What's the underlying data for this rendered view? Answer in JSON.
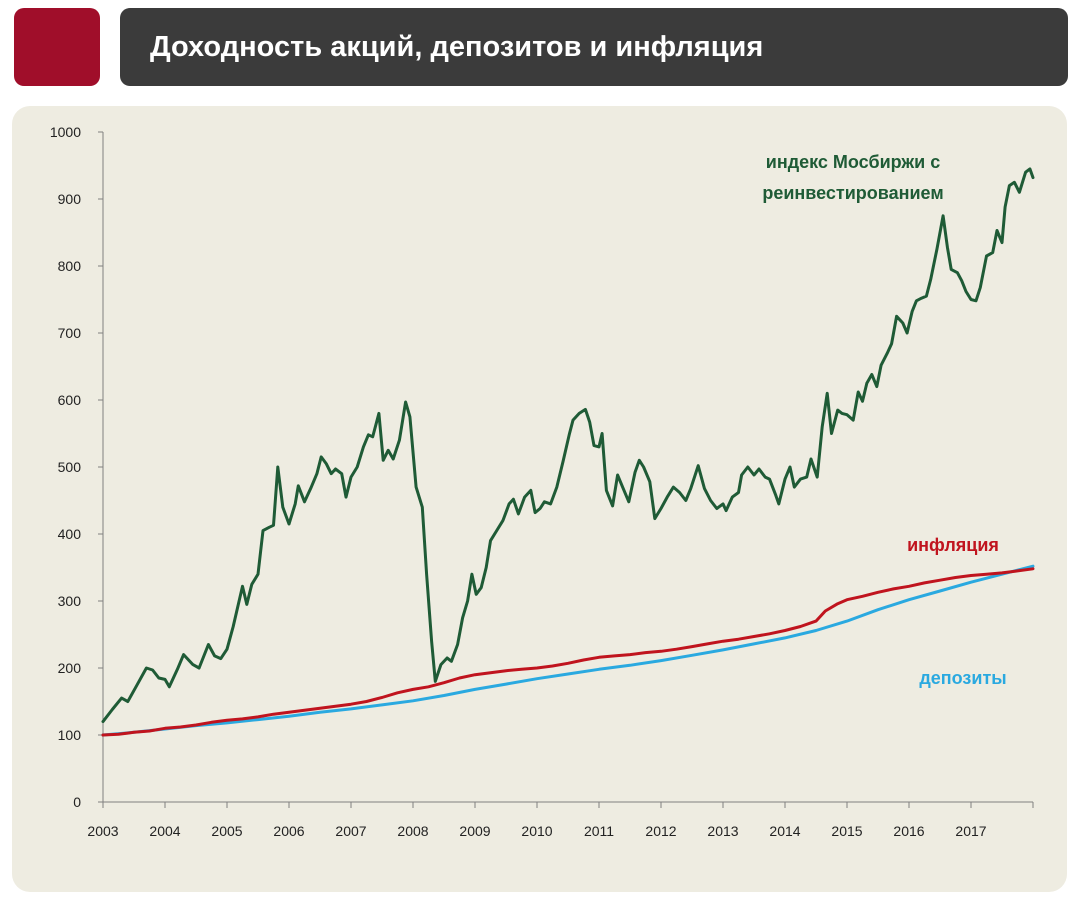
{
  "header": {
    "title": "Доходность акций, депозитов и инфляция"
  },
  "colors": {
    "accent": "#a00e2a",
    "title_bar": "#3b3b3b",
    "panel": "#eeece1",
    "stocks": "#1f5b36",
    "inflation": "#c0141e",
    "deposits": "#2aa9e0",
    "axis": "#808080"
  },
  "chart_data": {
    "type": "line",
    "title": "Доходность акций, депозитов и инфляция",
    "xlabel": "",
    "ylabel": "",
    "xlim": [
      2003,
      2018
    ],
    "ylim": [
      0,
      1000
    ],
    "x_ticks": [
      "2003",
      "2004",
      "2005",
      "2006",
      "2007",
      "2008",
      "2009",
      "2010",
      "2011",
      "2012",
      "2013",
      "2014",
      "2015",
      "2016",
      "2017"
    ],
    "y_ticks": [
      "0",
      "100",
      "200",
      "300",
      "400",
      "500",
      "600",
      "700",
      "800",
      "900",
      "1000"
    ],
    "grid": false,
    "series": [
      {
        "name": "индекс Мосбиржи с реинвестированием",
        "label_lines": [
          "индекс Мосбиржи с",
          "реинвестированием"
        ],
        "points": [
          [
            2003.0,
            120
          ],
          [
            2003.15,
            138
          ],
          [
            2003.3,
            155
          ],
          [
            2003.4,
            150
          ],
          [
            2003.55,
            175
          ],
          [
            2003.7,
            200
          ],
          [
            2003.8,
            197
          ],
          [
            2003.9,
            185
          ],
          [
            2004.0,
            183
          ],
          [
            2004.07,
            172
          ],
          [
            2004.2,
            198
          ],
          [
            2004.3,
            220
          ],
          [
            2004.45,
            205
          ],
          [
            2004.55,
            200
          ],
          [
            2004.7,
            235
          ],
          [
            2004.8,
            218
          ],
          [
            2004.9,
            214
          ],
          [
            2005.0,
            228
          ],
          [
            2005.1,
            262
          ],
          [
            2005.25,
            322
          ],
          [
            2005.32,
            295
          ],
          [
            2005.4,
            325
          ],
          [
            2005.5,
            340
          ],
          [
            2005.58,
            405
          ],
          [
            2005.68,
            410
          ],
          [
            2005.75,
            413
          ],
          [
            2005.82,
            500
          ],
          [
            2005.9,
            440
          ],
          [
            2006.0,
            415
          ],
          [
            2006.1,
            445
          ],
          [
            2006.15,
            472
          ],
          [
            2006.25,
            448
          ],
          [
            2006.35,
            468
          ],
          [
            2006.45,
            490
          ],
          [
            2006.52,
            515
          ],
          [
            2006.6,
            505
          ],
          [
            2006.68,
            490
          ],
          [
            2006.75,
            497
          ],
          [
            2006.85,
            490
          ],
          [
            2006.92,
            455
          ],
          [
            2007.0,
            485
          ],
          [
            2007.1,
            500
          ],
          [
            2007.2,
            530
          ],
          [
            2007.28,
            548
          ],
          [
            2007.35,
            545
          ],
          [
            2007.45,
            580
          ],
          [
            2007.52,
            510
          ],
          [
            2007.6,
            525
          ],
          [
            2007.68,
            512
          ],
          [
            2007.78,
            540
          ],
          [
            2007.88,
            597
          ],
          [
            2007.95,
            575
          ],
          [
            2008.05,
            470
          ],
          [
            2008.15,
            440
          ],
          [
            2008.22,
            340
          ],
          [
            2008.3,
            240
          ],
          [
            2008.36,
            180
          ],
          [
            2008.45,
            205
          ],
          [
            2008.55,
            215
          ],
          [
            2008.62,
            210
          ],
          [
            2008.72,
            235
          ],
          [
            2008.8,
            275
          ],
          [
            2008.88,
            300
          ],
          [
            2008.95,
            340
          ],
          [
            2009.02,
            310
          ],
          [
            2009.1,
            320
          ],
          [
            2009.18,
            350
          ],
          [
            2009.25,
            390
          ],
          [
            2009.35,
            405
          ],
          [
            2009.45,
            420
          ],
          [
            2009.55,
            445
          ],
          [
            2009.62,
            452
          ],
          [
            2009.7,
            430
          ],
          [
            2009.8,
            455
          ],
          [
            2009.9,
            465
          ],
          [
            2009.97,
            432
          ],
          [
            2010.05,
            438
          ],
          [
            2010.12,
            448
          ],
          [
            2010.22,
            445
          ],
          [
            2010.32,
            470
          ],
          [
            2010.42,
            508
          ],
          [
            2010.52,
            548
          ],
          [
            2010.58,
            570
          ],
          [
            2010.68,
            580
          ],
          [
            2010.78,
            586
          ],
          [
            2010.85,
            567
          ],
          [
            2010.92,
            532
          ],
          [
            2011.0,
            530
          ],
          [
            2011.05,
            550
          ],
          [
            2011.12,
            465
          ],
          [
            2011.22,
            442
          ],
          [
            2011.3,
            488
          ],
          [
            2011.38,
            470
          ],
          [
            2011.48,
            448
          ],
          [
            2011.58,
            492
          ],
          [
            2011.65,
            510
          ],
          [
            2011.72,
            500
          ],
          [
            2011.82,
            478
          ],
          [
            2011.9,
            423
          ],
          [
            2012.0,
            438
          ],
          [
            2012.1,
            455
          ],
          [
            2012.2,
            470
          ],
          [
            2012.3,
            462
          ],
          [
            2012.4,
            450
          ],
          [
            2012.48,
            468
          ],
          [
            2012.6,
            502
          ],
          [
            2012.7,
            468
          ],
          [
            2012.8,
            450
          ],
          [
            2012.9,
            438
          ],
          [
            2013.0,
            445
          ],
          [
            2013.05,
            435
          ],
          [
            2013.15,
            455
          ],
          [
            2013.25,
            462
          ],
          [
            2013.3,
            488
          ],
          [
            2013.4,
            500
          ],
          [
            2013.5,
            488
          ],
          [
            2013.58,
            497
          ],
          [
            2013.68,
            485
          ],
          [
            2013.75,
            482
          ],
          [
            2013.85,
            458
          ],
          [
            2013.9,
            445
          ],
          [
            2014.0,
            482
          ],
          [
            2014.08,
            500
          ],
          [
            2014.15,
            470
          ],
          [
            2014.25,
            482
          ],
          [
            2014.35,
            485
          ],
          [
            2014.42,
            512
          ],
          [
            2014.52,
            485
          ],
          [
            2014.6,
            560
          ],
          [
            2014.68,
            610
          ],
          [
            2014.75,
            550
          ],
          [
            2014.85,
            585
          ],
          [
            2014.92,
            580
          ],
          [
            2015.0,
            578
          ],
          [
            2015.1,
            570
          ],
          [
            2015.18,
            612
          ],
          [
            2015.25,
            598
          ],
          [
            2015.32,
            625
          ],
          [
            2015.4,
            638
          ],
          [
            2015.48,
            620
          ],
          [
            2015.55,
            652
          ],
          [
            2015.65,
            670
          ],
          [
            2015.72,
            684
          ],
          [
            2015.8,
            725
          ],
          [
            2015.9,
            715
          ],
          [
            2015.97,
            700
          ],
          [
            2016.05,
            732
          ],
          [
            2016.12,
            748
          ],
          [
            2016.2,
            752
          ],
          [
            2016.28,
            755
          ],
          [
            2016.35,
            780
          ],
          [
            2016.45,
            825
          ],
          [
            2016.55,
            875
          ],
          [
            2016.62,
            828
          ],
          [
            2016.68,
            795
          ],
          [
            2016.78,
            790
          ],
          [
            2016.85,
            778
          ],
          [
            2016.92,
            762
          ],
          [
            2017.0,
            750
          ],
          [
            2017.08,
            748
          ],
          [
            2017.15,
            768
          ],
          [
            2017.25,
            815
          ],
          [
            2017.35,
            820
          ],
          [
            2017.42,
            853
          ],
          [
            2017.5,
            835
          ],
          [
            2017.55,
            888
          ],
          [
            2017.62,
            920
          ],
          [
            2017.7,
            925
          ],
          [
            2017.78,
            910
          ],
          [
            2017.88,
            940
          ],
          [
            2017.95,
            945
          ],
          [
            2018.0,
            932
          ]
        ]
      },
      {
        "name": "инфляция",
        "label_lines": [
          "инфляция"
        ],
        "points": [
          [
            2003.0,
            100
          ],
          [
            2003.25,
            101
          ],
          [
            2003.5,
            104
          ],
          [
            2003.75,
            106
          ],
          [
            2004.0,
            110
          ],
          [
            2004.25,
            112
          ],
          [
            2004.5,
            115
          ],
          [
            2004.75,
            119
          ],
          [
            2005.0,
            122
          ],
          [
            2005.25,
            124
          ],
          [
            2005.5,
            127
          ],
          [
            2005.75,
            131
          ],
          [
            2006.0,
            134
          ],
          [
            2006.25,
            137
          ],
          [
            2006.5,
            140
          ],
          [
            2006.75,
            143
          ],
          [
            2007.0,
            146
          ],
          [
            2007.25,
            150
          ],
          [
            2007.5,
            156
          ],
          [
            2007.75,
            163
          ],
          [
            2008.0,
            168
          ],
          [
            2008.25,
            172
          ],
          [
            2008.5,
            178
          ],
          [
            2008.75,
            185
          ],
          [
            2009.0,
            190
          ],
          [
            2009.25,
            193
          ],
          [
            2009.5,
            196
          ],
          [
            2009.75,
            198
          ],
          [
            2010.0,
            200
          ],
          [
            2010.25,
            203
          ],
          [
            2010.5,
            207
          ],
          [
            2010.75,
            212
          ],
          [
            2011.0,
            216
          ],
          [
            2011.25,
            218
          ],
          [
            2011.5,
            220
          ],
          [
            2011.75,
            223
          ],
          [
            2012.0,
            225
          ],
          [
            2012.25,
            228
          ],
          [
            2012.5,
            232
          ],
          [
            2012.75,
            236
          ],
          [
            2013.0,
            240
          ],
          [
            2013.25,
            243
          ],
          [
            2013.5,
            247
          ],
          [
            2013.75,
            251
          ],
          [
            2014.0,
            256
          ],
          [
            2014.25,
            262
          ],
          [
            2014.5,
            270
          ],
          [
            2014.65,
            285
          ],
          [
            2014.85,
            296
          ],
          [
            2015.0,
            302
          ],
          [
            2015.25,
            307
          ],
          [
            2015.5,
            313
          ],
          [
            2015.75,
            318
          ],
          [
            2016.0,
            322
          ],
          [
            2016.25,
            327
          ],
          [
            2016.5,
            331
          ],
          [
            2016.75,
            335
          ],
          [
            2017.0,
            338
          ],
          [
            2017.25,
            340
          ],
          [
            2017.5,
            342
          ],
          [
            2017.75,
            345
          ],
          [
            2018.0,
            348
          ]
        ]
      },
      {
        "name": "депозиты",
        "label_lines": [
          "депозиты"
        ],
        "points": [
          [
            2003.0,
            100
          ],
          [
            2003.5,
            104
          ],
          [
            2004.0,
            109
          ],
          [
            2004.5,
            114
          ],
          [
            2005.0,
            118
          ],
          [
            2005.5,
            123
          ],
          [
            2006.0,
            128
          ],
          [
            2006.5,
            134
          ],
          [
            2007.0,
            139
          ],
          [
            2007.5,
            145
          ],
          [
            2008.0,
            151
          ],
          [
            2008.5,
            159
          ],
          [
            2009.0,
            168
          ],
          [
            2009.5,
            176
          ],
          [
            2010.0,
            184
          ],
          [
            2010.5,
            191
          ],
          [
            2011.0,
            198
          ],
          [
            2011.5,
            204
          ],
          [
            2012.0,
            211
          ],
          [
            2012.5,
            219
          ],
          [
            2013.0,
            227
          ],
          [
            2013.5,
            236
          ],
          [
            2014.0,
            245
          ],
          [
            2014.5,
            256
          ],
          [
            2015.0,
            270
          ],
          [
            2015.5,
            287
          ],
          [
            2016.0,
            302
          ],
          [
            2016.5,
            315
          ],
          [
            2017.0,
            328
          ],
          [
            2017.5,
            340
          ],
          [
            2018.0,
            352
          ]
        ]
      }
    ]
  }
}
